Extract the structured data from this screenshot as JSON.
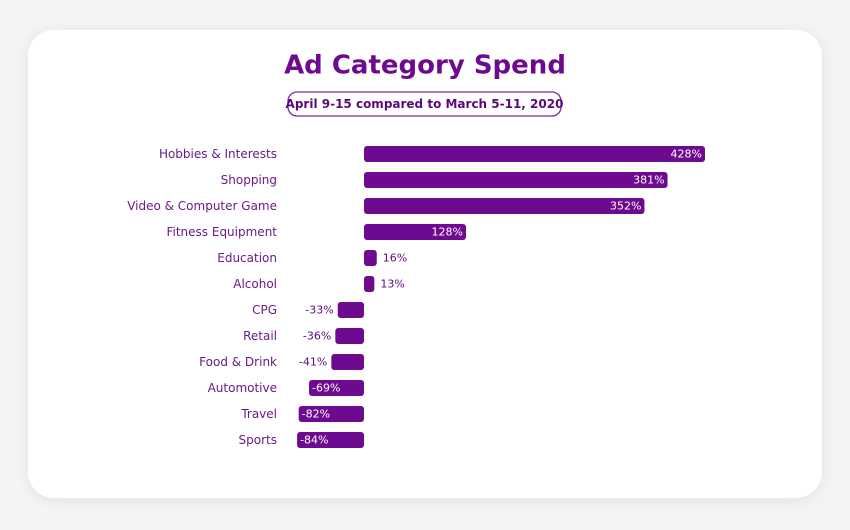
{
  "chart_data": {
    "type": "bar",
    "orientation": "horizontal",
    "title": "Ad Category Spend",
    "subtitle": "April 9-15 compared to March 5-11, 2020",
    "categories": [
      "Hobbies & Interests",
      "Shopping",
      "Video & Computer Game",
      "Fitness Equipment",
      "Education",
      "Alcohol",
      "CPG",
      "Retail",
      "Food & Drink",
      "Automotive",
      "Travel",
      "Sports"
    ],
    "values": [
      428,
      381,
      352,
      128,
      16,
      13,
      -33,
      -36,
      -41,
      -69,
      -82,
      -84
    ],
    "value_labels": [
      "428%",
      "381%",
      "352%",
      "128%",
      "16%",
      "13%",
      "-33%",
      "-36%",
      "-41%",
      "-69%",
      "-82%",
      "-84%"
    ],
    "color": "#6e0a8f"
  }
}
